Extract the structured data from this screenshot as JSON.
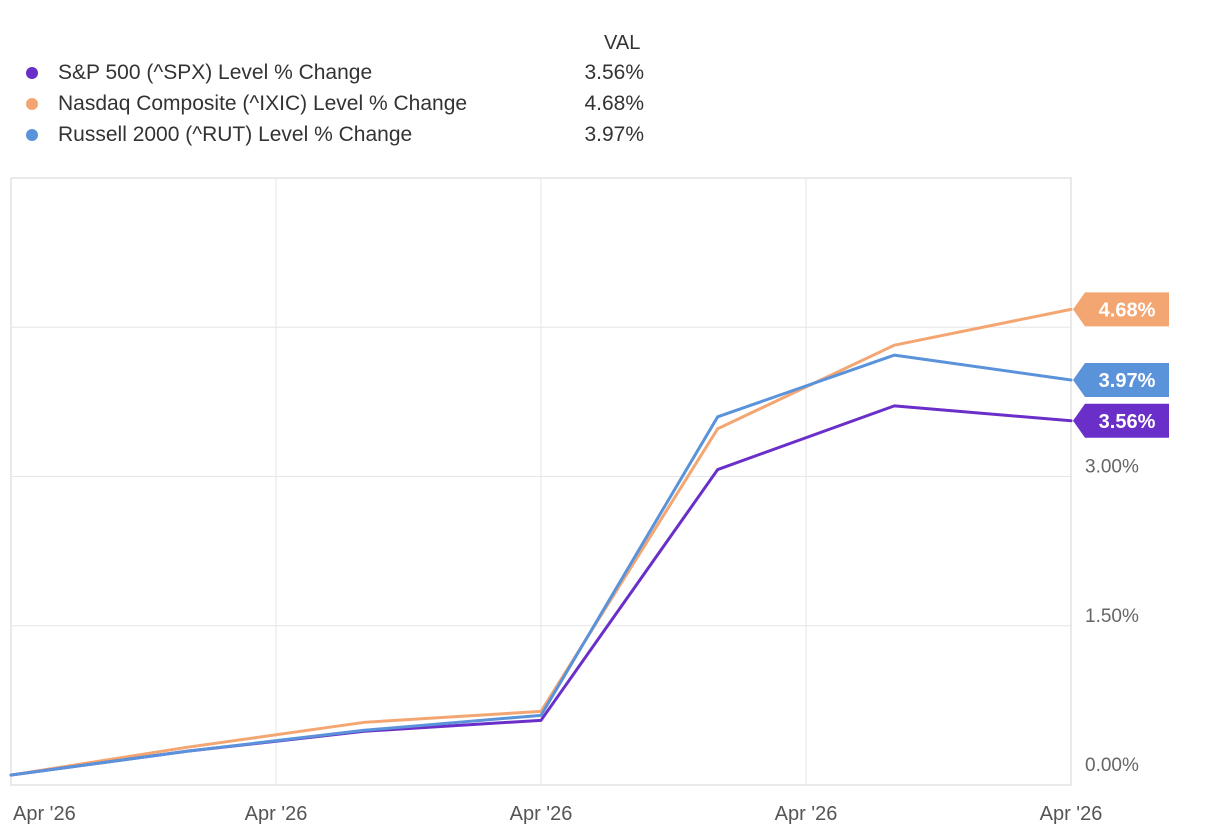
{
  "legend": {
    "header": "VAL",
    "items": [
      {
        "label": "S&P 500 (^SPX) Level % Change",
        "value": "3.56%",
        "color": "#6a2fc9"
      },
      {
        "label": "Nasdaq Composite (^IXIC) Level % Change",
        "value": "4.68%",
        "color": "#f4a672"
      },
      {
        "label": "Russell 2000 (^RUT) Level % Change",
        "value": "3.97%",
        "color": "#5b93db"
      }
    ]
  },
  "chart_data": {
    "type": "line",
    "x": [
      0,
      1,
      2,
      3,
      4,
      5,
      6
    ],
    "x_tick_labels": [
      "Apr '26",
      "Apr '26",
      "Apr '26",
      "Apr '26",
      "Apr '26"
    ],
    "y_ticks": [
      0,
      1.5,
      3.0
    ],
    "y_tick_labels": [
      "0.00%",
      "1.50%",
      "3.00%"
    ],
    "ylim": [
      -0.1,
      6.0
    ],
    "y_axis_position": "right",
    "grid": true,
    "series": [
      {
        "name": "S&P 500 (^SPX) Level % Change",
        "color": "#6a2fc9",
        "values": [
          0.0,
          0.24,
          0.44,
          0.55,
          3.07,
          3.71,
          3.56
        ],
        "end_label": "3.56%"
      },
      {
        "name": "Nasdaq Composite (^IXIC) Level % Change",
        "color": "#f4a672",
        "values": [
          0.0,
          0.28,
          0.53,
          0.64,
          3.48,
          4.32,
          4.68
        ],
        "end_label": "4.68%"
      },
      {
        "name": "Russell 2000 (^RUT) Level % Change",
        "color": "#5b93db",
        "values": [
          0.0,
          0.24,
          0.45,
          0.6,
          3.6,
          4.22,
          3.97
        ],
        "end_label": "3.97%"
      }
    ]
  }
}
